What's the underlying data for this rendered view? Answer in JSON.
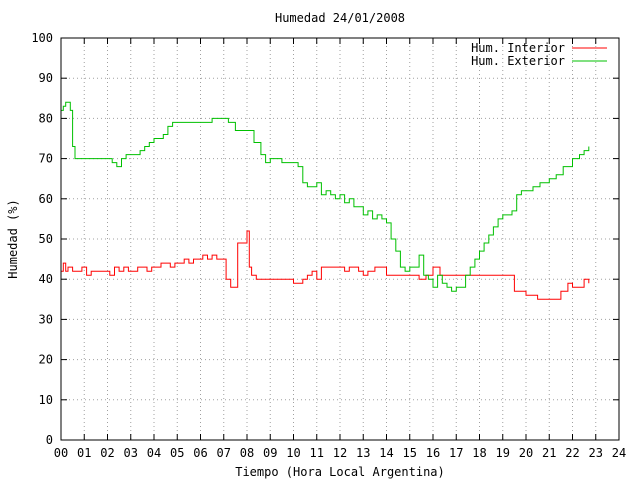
{
  "chart_data": {
    "type": "line",
    "title": "Humedad 24/01/2008",
    "xlabel": "Tiempo (Hora Local Argentina)",
    "ylabel": "Humedad (%)",
    "xlim": [
      0,
      24
    ],
    "ylim": [
      0,
      100
    ],
    "x_ticks": [
      "00",
      "01",
      "02",
      "03",
      "04",
      "05",
      "06",
      "07",
      "08",
      "09",
      "10",
      "11",
      "12",
      "13",
      "14",
      "15",
      "16",
      "17",
      "18",
      "19",
      "20",
      "21",
      "22",
      "23",
      "24"
    ],
    "y_ticks": [
      0,
      10,
      20,
      30,
      40,
      50,
      60,
      70,
      80,
      90,
      100
    ],
    "grid": true,
    "legend_position": "top-right",
    "series": [
      {
        "name": "Hum. Interior",
        "color": "#ff0000",
        "x": [
          0,
          0.1,
          0.2,
          0.3,
          0.5,
          0.7,
          0.9,
          1.1,
          1.3,
          1.5,
          1.7,
          1.9,
          2.1,
          2.3,
          2.5,
          2.7,
          2.9,
          3.1,
          3.3,
          3.5,
          3.7,
          3.9,
          4.1,
          4.3,
          4.5,
          4.7,
          4.9,
          5.1,
          5.3,
          5.5,
          5.7,
          5.9,
          6.1,
          6.3,
          6.5,
          6.7,
          6.9,
          7.1,
          7.3,
          7.5,
          7.6,
          7.7,
          8.0,
          8.1,
          8.2,
          8.4,
          8.6,
          8.8,
          9.0,
          9.3,
          9.6,
          10.0,
          10.2,
          10.4,
          10.6,
          10.8,
          11.0,
          11.2,
          11.5,
          11.8,
          12.0,
          12.2,
          12.4,
          12.6,
          12.8,
          13.0,
          13.2,
          13.5,
          13.8,
          14.0,
          14.2,
          14.5,
          14.8,
          15.1,
          15.4,
          15.7,
          16.0,
          16.3,
          16.6,
          17.0,
          17.5,
          18.0,
          18.5,
          19.0,
          19.3,
          19.5,
          20.0,
          20.5,
          21.0,
          21.3,
          21.5,
          21.8,
          22.0,
          22.2,
          22.5,
          22.7
        ],
        "y": [
          42,
          44,
          42,
          43,
          42,
          42,
          43,
          41,
          42,
          42,
          42,
          42,
          41,
          43,
          42,
          43,
          42,
          42,
          43,
          43,
          42,
          43,
          43,
          44,
          44,
          43,
          44,
          44,
          45,
          44,
          45,
          45,
          46,
          45,
          46,
          45,
          45,
          40,
          38,
          38,
          49,
          49,
          52,
          43,
          41,
          40,
          40,
          40,
          40,
          40,
          40,
          39,
          39,
          40,
          41,
          42,
          40,
          43,
          43,
          43,
          43,
          42,
          43,
          43,
          42,
          41,
          42,
          43,
          43,
          41,
          41,
          41,
          41,
          41,
          40,
          41,
          43,
          41,
          41,
          41,
          41,
          41,
          41,
          41,
          41,
          37,
          36,
          35,
          35,
          35,
          37,
          39,
          38,
          38,
          40,
          39
        ]
      },
      {
        "name": "Hum. Exterior",
        "color": "#00c000",
        "x": [
          0,
          0.1,
          0.2,
          0.3,
          0.4,
          0.5,
          0.6,
          1.0,
          1.5,
          2.0,
          2.2,
          2.4,
          2.6,
          2.8,
          3.0,
          3.2,
          3.4,
          3.6,
          3.8,
          4.0,
          4.2,
          4.4,
          4.6,
          4.8,
          5.0,
          5.5,
          6.0,
          6.5,
          7.0,
          7.2,
          7.5,
          7.8,
          8.0,
          8.3,
          8.6,
          8.8,
          9.0,
          9.2,
          9.5,
          9.8,
          10.0,
          10.2,
          10.4,
          10.6,
          10.8,
          11.0,
          11.2,
          11.4,
          11.6,
          11.8,
          12.0,
          12.2,
          12.4,
          12.6,
          12.8,
          13.0,
          13.2,
          13.4,
          13.6,
          13.8,
          14.0,
          14.2,
          14.4,
          14.6,
          14.8,
          15.0,
          15.2,
          15.4,
          15.6,
          15.8,
          16.0,
          16.2,
          16.4,
          16.6,
          16.8,
          17.0,
          17.2,
          17.4,
          17.6,
          17.8,
          18.0,
          18.2,
          18.4,
          18.6,
          18.8,
          19.0,
          19.2,
          19.4,
          19.6,
          19.8,
          20.0,
          20.3,
          20.6,
          21.0,
          21.3,
          21.6,
          22.0,
          22.3,
          22.5,
          22.7
        ],
        "y": [
          82,
          83,
          84,
          84,
          82,
          73,
          70,
          70,
          70,
          70,
          69,
          68,
          70,
          71,
          71,
          71,
          72,
          73,
          74,
          75,
          75,
          76,
          78,
          79,
          79,
          79,
          79,
          80,
          80,
          79,
          77,
          77,
          77,
          74,
          71,
          69,
          70,
          70,
          69,
          69,
          69,
          68,
          64,
          63,
          63,
          64,
          61,
          62,
          61,
          60,
          61,
          59,
          60,
          58,
          58,
          56,
          57,
          55,
          56,
          55,
          54,
          50,
          47,
          43,
          42,
          43,
          43,
          46,
          41,
          40,
          38,
          41,
          39,
          38,
          37,
          38,
          38,
          41,
          43,
          45,
          47,
          49,
          51,
          53,
          55,
          56,
          56,
          57,
          61,
          62,
          62,
          63,
          64,
          65,
          66,
          68,
          70,
          71,
          72,
          73
        ]
      }
    ]
  }
}
